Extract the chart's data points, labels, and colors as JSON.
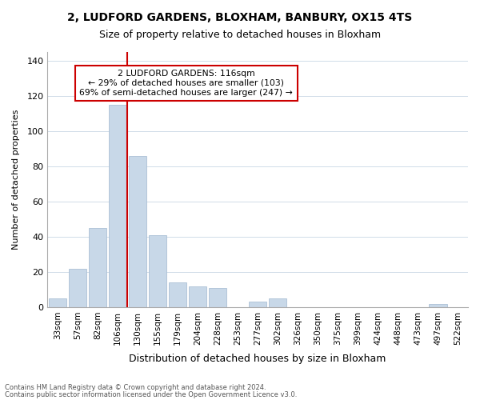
{
  "title": "2, LUDFORD GARDENS, BLOXHAM, BANBURY, OX15 4TS",
  "subtitle": "Size of property relative to detached houses in Bloxham",
  "xlabel": "Distribution of detached houses by size in Bloxham",
  "ylabel": "Number of detached properties",
  "footnote1": "Contains HM Land Registry data © Crown copyright and database right 2024.",
  "footnote2": "Contains public sector information licensed under the Open Government Licence v3.0.",
  "bar_labels": [
    "33sqm",
    "57sqm",
    "82sqm",
    "106sqm",
    "130sqm",
    "155sqm",
    "179sqm",
    "204sqm",
    "228sqm",
    "253sqm",
    "277sqm",
    "302sqm",
    "326sqm",
    "350sqm",
    "375sqm",
    "399sqm",
    "424sqm",
    "448sqm",
    "473sqm",
    "497sqm",
    "522sqm"
  ],
  "bar_values": [
    5,
    22,
    45,
    115,
    86,
    41,
    14,
    12,
    11,
    0,
    3,
    5,
    0,
    0,
    0,
    0,
    0,
    0,
    0,
    2,
    0
  ],
  "bar_color": "#c8d8e8",
  "bar_edge_color": "#a0b8d0",
  "vline_pos": 3.5,
  "vline_color": "#cc0000",
  "ylim": [
    0,
    145
  ],
  "yticks": [
    0,
    20,
    40,
    60,
    80,
    100,
    120,
    140
  ],
  "annotation_title": "2 LUDFORD GARDENS: 116sqm",
  "annotation_line1": "← 29% of detached houses are smaller (103)",
  "annotation_line2": "69% of semi-detached houses are larger (247) →",
  "annotation_box_color": "#ffffff",
  "annotation_box_edgecolor": "#cc0000",
  "background_color": "#ffffff",
  "grid_color": "#d0dce8"
}
